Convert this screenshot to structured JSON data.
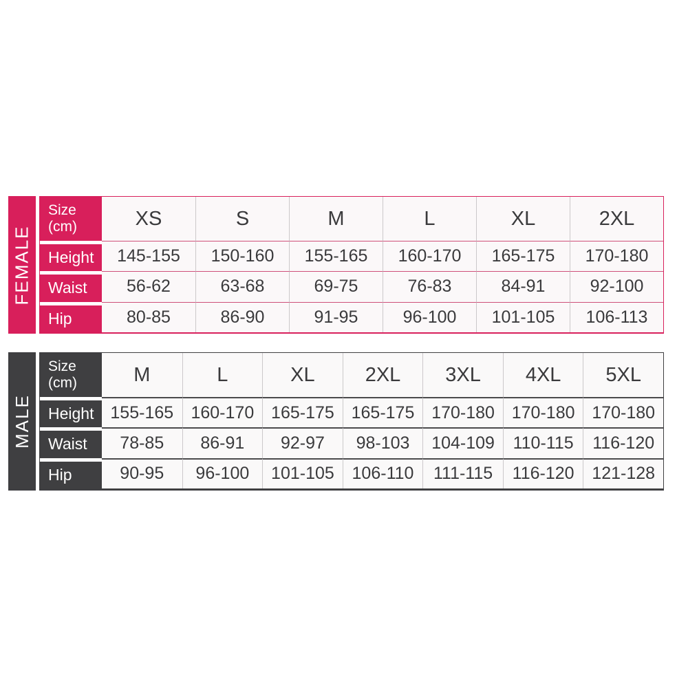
{
  "styles": {
    "canvas_bg": "#FFFFFF",
    "female_accent": "#D81F5B",
    "male_accent": "#3F3F41",
    "value_text_color": "#3A3A3C",
    "label_text_color": "#FFFFFF"
  },
  "chart_data": [
    {
      "type": "table",
      "name": "FEMALE",
      "unit": "cm",
      "corner_label_line1": "Size",
      "corner_label_line2": "(cm)",
      "accent_color": "#D81F5B",
      "sizes": [
        "XS",
        "S",
        "M",
        "L",
        "XL",
        "2XL"
      ],
      "measurements": [
        {
          "label": "Height",
          "values": [
            "145-155",
            "150-160",
            "155-165",
            "160-170",
            "165-175",
            "170-180"
          ]
        },
        {
          "label": "Waist",
          "values": [
            "56-62",
            "63-68",
            "69-75",
            "76-83",
            "84-91",
            "92-100"
          ]
        },
        {
          "label": "Hip",
          "values": [
            "80-85",
            "86-90",
            "91-95",
            "96-100",
            "101-105",
            "106-113"
          ]
        }
      ]
    },
    {
      "type": "table",
      "name": "MALE",
      "unit": "cm",
      "corner_label_line1": "Size",
      "corner_label_line2": "(cm)",
      "accent_color": "#3F3F41",
      "sizes": [
        "M",
        "L",
        "XL",
        "2XL",
        "3XL",
        "4XL",
        "5XL"
      ],
      "measurements": [
        {
          "label": "Height",
          "values": [
            "155-165",
            "160-170",
            "165-175",
            "165-175",
            "170-180",
            "170-180",
            "170-180"
          ]
        },
        {
          "label": "Waist",
          "values": [
            "78-85",
            "86-91",
            "92-97",
            "98-103",
            "104-109",
            "110-115",
            "116-120"
          ]
        },
        {
          "label": "Hip",
          "values": [
            "90-95",
            "96-100",
            "101-105",
            "106-110",
            "111-115",
            "116-120",
            "121-128"
          ]
        }
      ]
    }
  ]
}
